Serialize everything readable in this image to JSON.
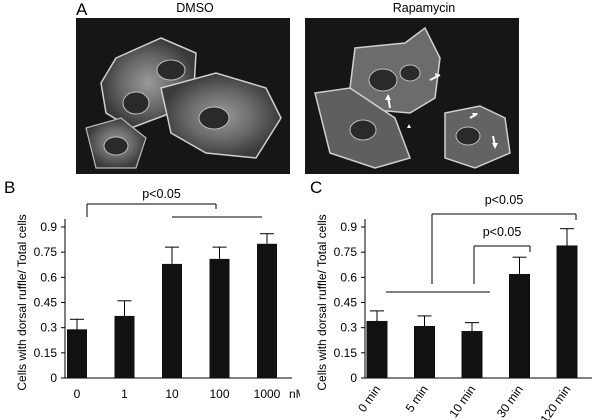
{
  "panel_a": {
    "letter": "A",
    "images": [
      {
        "title": "DMSO",
        "description_icon": "microscopy-cells"
      },
      {
        "title": "Rapamycin",
        "description_icon": "microscopy-cells-with-ruffles"
      }
    ]
  },
  "chart_data": [
    {
      "panel": "B",
      "type": "bar",
      "ylabel": "Cells with dorsal ruffle/ Total cells",
      "xlabel": "",
      "x_unit_label": "nM",
      "categories": [
        "0",
        "1",
        "10",
        "100",
        "1000"
      ],
      "values": [
        0.29,
        0.37,
        0.68,
        0.71,
        0.8
      ],
      "errors": [
        0.06,
        0.09,
        0.1,
        0.07,
        0.06
      ],
      "ylim": [
        0,
        0.9
      ],
      "yticks": [
        "0",
        "0.15",
        "0.3",
        "0.45",
        "0.6",
        "0.75",
        "0.9"
      ],
      "grid": false,
      "bar_color": "#111111",
      "annotations": [
        {
          "text": "p<0.05"
        }
      ]
    },
    {
      "panel": "C",
      "type": "bar",
      "ylabel": "Cells with dorsal ruffle/ Total cells",
      "xlabel": "",
      "categories": [
        "0 min",
        "5 min",
        "10 min",
        "30 min",
        "120 min"
      ],
      "values": [
        0.34,
        0.31,
        0.28,
        0.62,
        0.79
      ],
      "errors": [
        0.06,
        0.06,
        0.05,
        0.1,
        0.1
      ],
      "ylim": [
        0,
        0.9
      ],
      "yticks": [
        "0",
        "0.15",
        "0.3",
        "0.45",
        "0.6",
        "0.75",
        "0.9"
      ],
      "grid": false,
      "bar_color": "#111111",
      "annotations": [
        {
          "text": "p<0.05"
        },
        {
          "text": "p<0.05"
        }
      ]
    }
  ]
}
